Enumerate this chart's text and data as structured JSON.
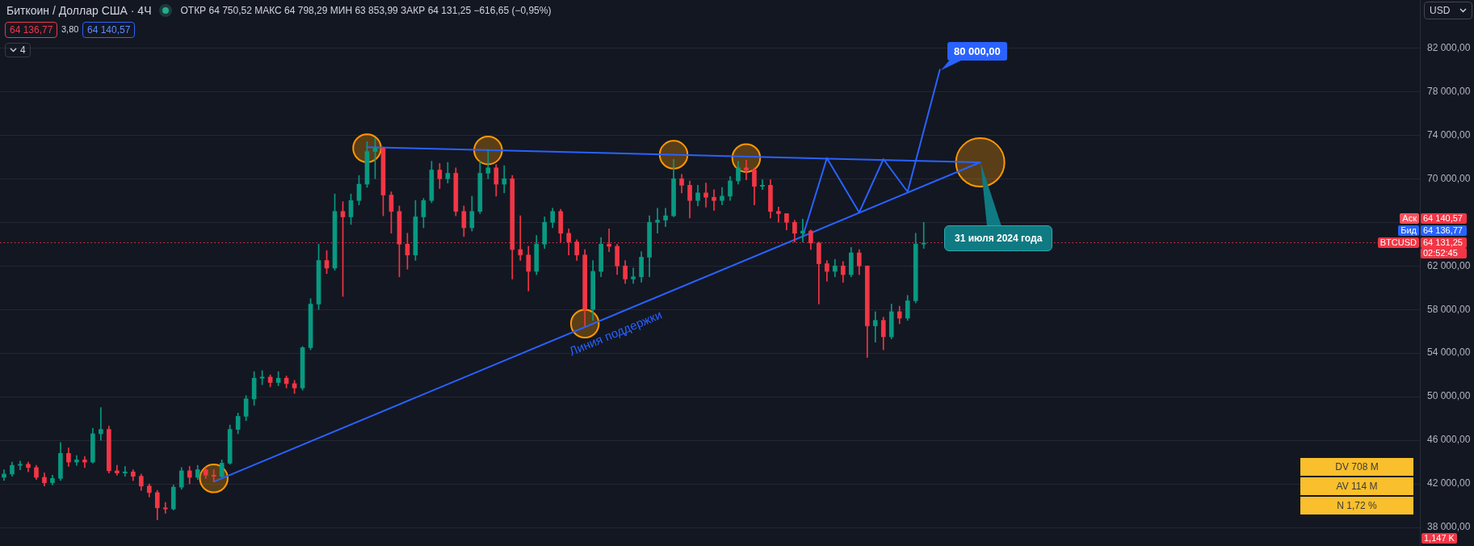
{
  "chart_data": {
    "type": "candlestick",
    "title": "Биткоин / Доллар США · 4Ч",
    "subtitle": "ОТКР 64 750,52 МАКС 64 798,29 МИН 63 853,99 ЗАКР 64 131,25 −616,65 (−0,95%)",
    "categories": [
      null,
      null,
      null,
      null,
      null,
      null,
      null,
      null,
      null,
      null,
      null,
      null,
      null,
      null,
      null,
      null,
      null,
      null,
      null,
      null,
      null,
      null,
      null,
      null,
      null,
      null,
      null,
      null,
      null,
      null,
      null,
      null,
      null,
      null,
      null,
      null,
      null,
      null,
      null,
      null,
      null,
      null,
      null,
      null,
      null,
      null,
      null,
      null,
      null,
      null,
      null,
      null,
      null,
      null,
      null,
      null,
      null,
      null,
      null,
      null,
      null,
      null,
      null,
      null,
      null,
      null,
      null,
      null,
      null,
      null,
      null,
      null,
      null,
      null,
      null,
      null,
      null,
      null,
      null,
      null,
      null,
      null,
      null,
      null,
      null,
      null,
      null,
      null,
      null,
      null,
      null,
      null,
      null,
      null,
      null,
      null,
      null,
      null,
      null,
      null,
      null,
      null,
      null,
      null,
      null,
      null,
      null,
      null,
      null,
      null,
      null,
      null,
      null,
      null,
      null,
      null,
      null,
      null,
      null,
      null,
      null,
      null,
      null,
      null,
      null,
      null,
      null,
      null,
      null,
      null,
      null,
      null,
      null,
      null,
      null,
      null,
      null,
      null,
      null,
      null,
      null,
      null,
      null,
      null,
      null,
      null,
      null,
      null,
      null,
      null,
      null,
      null,
      null,
      null,
      null,
      null,
      null,
      null,
      null,
      null,
      null,
      null,
      null,
      null,
      null,
      null,
      null,
      null,
      null,
      null,
      null,
      null,
      null,
      null,
      null,
      null
    ],
    "ohlc": [
      [
        42600,
        43300,
        42300,
        42900
      ],
      [
        42900,
        44000,
        42700,
        43700
      ],
      [
        43700,
        44100,
        43300,
        43800
      ],
      [
        43800,
        44000,
        43100,
        43500
      ],
      [
        43500,
        43700,
        42400,
        42600
      ],
      [
        42600,
        43000,
        41800,
        42100
      ],
      [
        42100,
        42800,
        41900,
        42500
      ],
      [
        42500,
        45800,
        42300,
        44800
      ],
      [
        44800,
        45300,
        43600,
        44000
      ],
      [
        44000,
        44600,
        43700,
        44200
      ],
      [
        44200,
        44500,
        43500,
        44000
      ],
      [
        44000,
        47100,
        43900,
        46600
      ],
      [
        46600,
        49000,
        46000,
        47000
      ],
      [
        47000,
        47300,
        43000,
        43200
      ],
      [
        43200,
        43700,
        42800,
        43000
      ],
      [
        43000,
        43600,
        42700,
        43100
      ],
      [
        43100,
        43300,
        42300,
        42700
      ],
      [
        42700,
        42900,
        41400,
        41800
      ],
      [
        41800,
        42000,
        40800,
        41200
      ],
      [
        41200,
        41400,
        38700,
        39800
      ],
      [
        39800,
        40300,
        39300,
        39700
      ],
      [
        39700,
        41900,
        39600,
        41700
      ],
      [
        41700,
        43500,
        41500,
        43200
      ],
      [
        43200,
        43600,
        42000,
        42600
      ],
      [
        42600,
        43700,
        42400,
        43300
      ],
      [
        43300,
        43500,
        42500,
        42800
      ],
      [
        42800,
        43300,
        42200,
        42700
      ],
      [
        42700,
        44200,
        42600,
        43900
      ],
      [
        43900,
        47400,
        43800,
        47000
      ],
      [
        47000,
        48500,
        46600,
        48200
      ],
      [
        48200,
        50100,
        47800,
        49800
      ],
      [
        49800,
        52300,
        49200,
        51700
      ],
      [
        51700,
        52400,
        51100,
        51800
      ],
      [
        51800,
        52000,
        50900,
        51300
      ],
      [
        51300,
        52300,
        51000,
        51700
      ],
      [
        51700,
        51900,
        50800,
        51200
      ],
      [
        51200,
        51500,
        50300,
        50800
      ],
      [
        50800,
        54600,
        50600,
        54500
      ],
      [
        54500,
        59000,
        54300,
        58500
      ],
      [
        58500,
        64000,
        58000,
        62500
      ],
      [
        62500,
        63400,
        61300,
        61800
      ],
      [
        61800,
        68600,
        61600,
        67000
      ],
      [
        67000,
        67900,
        59200,
        66500
      ],
      [
        66500,
        68600,
        65800,
        68000
      ],
      [
        68000,
        70300,
        67600,
        69500
      ],
      [
        69500,
        73400,
        69200,
        72500
      ],
      [
        72500,
        73700,
        70000,
        72800
      ],
      [
        72800,
        72900,
        66600,
        68500
      ],
      [
        68500,
        68800,
        65000,
        67000
      ],
      [
        67000,
        67500,
        61000,
        64000
      ],
      [
        64000,
        65000,
        61700,
        63000
      ],
      [
        63000,
        68000,
        62500,
        66500
      ],
      [
        66500,
        68200,
        65500,
        68000
      ],
      [
        68000,
        71600,
        67800,
        70800
      ],
      [
        70800,
        71400,
        69100,
        70000
      ],
      [
        70000,
        71500,
        69600,
        70500
      ],
      [
        70500,
        71000,
        66600,
        67000
      ],
      [
        67000,
        67500,
        64700,
        65500
      ],
      [
        65500,
        68400,
        65200,
        67000
      ],
      [
        67000,
        71600,
        66800,
        70500
      ],
      [
        70500,
        72700,
        70000,
        71000
      ],
      [
        71000,
        71300,
        68400,
        69500
      ],
      [
        69500,
        71200,
        68700,
        70000
      ],
      [
        70000,
        70300,
        60800,
        63500
      ],
      [
        63500,
        66600,
        62500,
        63000
      ],
      [
        63000,
        63800,
        59700,
        61500
      ],
      [
        61500,
        64800,
        61200,
        64000
      ],
      [
        64000,
        66500,
        63600,
        66000
      ],
      [
        66000,
        67300,
        65500,
        67000
      ],
      [
        67000,
        67200,
        64200,
        65000
      ],
      [
        65000,
        65400,
        63000,
        64200
      ],
      [
        64200,
        64400,
        62500,
        63000
      ],
      [
        63000,
        63500,
        56500,
        58000
      ],
      [
        58000,
        62500,
        57000,
        61500
      ],
      [
        61500,
        64600,
        61000,
        64000
      ],
      [
        64000,
        65400,
        63300,
        63800
      ],
      [
        63800,
        64000,
        61200,
        62000
      ],
      [
        62000,
        62500,
        60400,
        60800
      ],
      [
        60800,
        61800,
        60400,
        61000
      ],
      [
        61000,
        63300,
        60500,
        62800
      ],
      [
        62800,
        66600,
        61000,
        66000
      ],
      [
        66000,
        67300,
        65000,
        66200
      ],
      [
        66200,
        67300,
        65600,
        66600
      ],
      [
        66600,
        71800,
        66500,
        70000
      ],
      [
        70000,
        70400,
        68700,
        69400
      ],
      [
        69400,
        69800,
        66400,
        68000
      ],
      [
        68000,
        69400,
        67500,
        68700
      ],
      [
        68700,
        69600,
        67400,
        68300
      ],
      [
        68300,
        69000,
        67100,
        68000
      ],
      [
        68000,
        69200,
        67600,
        68400
      ],
      [
        68400,
        70200,
        68000,
        69800
      ],
      [
        69800,
        71600,
        69500,
        71000
      ],
      [
        71000,
        71700,
        69900,
        70800
      ],
      [
        70800,
        71000,
        67600,
        69300
      ],
      [
        69300,
        69900,
        69000,
        69400
      ],
      [
        69400,
        69900,
        66400,
        67000
      ],
      [
        67000,
        67400,
        66000,
        66800
      ],
      [
        66800,
        66800,
        65300,
        66000
      ],
      [
        66000,
        66200,
        64200,
        65000
      ],
      [
        65000,
        66300,
        64200,
        65200
      ],
      [
        65200,
        65300,
        63500,
        64100
      ],
      [
        64100,
        64200,
        58500,
        62200
      ],
      [
        62200,
        62500,
        60600,
        61500
      ],
      [
        61500,
        62600,
        61000,
        62000
      ],
      [
        62000,
        62400,
        60500,
        61200
      ],
      [
        61200,
        63700,
        61000,
        63200
      ],
      [
        63200,
        63500,
        61200,
        62000
      ],
      [
        62000,
        62000,
        53600,
        56500
      ],
      [
        56500,
        57800,
        55000,
        57000
      ],
      [
        57000,
        57300,
        54300,
        55500
      ],
      [
        55500,
        58500,
        55300,
        57800
      ],
      [
        57800,
        58300,
        56700,
        57200
      ],
      [
        57200,
        59300,
        57000,
        58800
      ],
      [
        58800,
        65000,
        58600,
        64000
      ],
      [
        64000,
        66000,
        63600,
        64100
      ],
      null,
      null,
      null,
      null,
      null,
      null,
      null,
      null,
      null,
      null,
      null,
      null,
      null,
      null,
      null,
      null,
      null,
      null,
      null,
      null,
      null,
      null,
      null,
      null,
      null,
      null,
      null,
      null,
      null,
      null,
      null,
      null,
      null,
      null,
      null,
      null,
      null,
      null,
      null,
      null,
      null,
      null,
      null,
      null,
      null,
      null,
      null,
      null,
      null,
      null,
      null,
      null,
      null,
      null,
      null,
      null,
      null,
      null,
      null,
      null,
      null
    ],
    "colors": [
      "#089981",
      "#089981",
      "#089981",
      "#f23645",
      "#f23645",
      "#f23645",
      "#089981",
      "#089981",
      "#f23645",
      "#089981",
      "#f23645",
      "#089981",
      "#089981",
      "#f23645",
      "#f23645",
      "#089981",
      "#f23645",
      "#f23645",
      "#f23645",
      "#f23645",
      "#f23645",
      "#089981",
      "#089981",
      "#f23645",
      "#089981",
      "#f23645",
      "#f23645",
      "#089981",
      "#089981",
      "#089981",
      "#089981",
      "#089981",
      "#089981",
      "#f23645",
      "#089981",
      "#f23645",
      "#f23645",
      "#089981",
      "#089981",
      "#089981",
      "#f23645",
      "#089981",
      "#f23645",
      "#089981",
      "#089981",
      "#089981",
      "#089981",
      "#f23645",
      "#f23645",
      "#f23645",
      "#f23645",
      "#089981",
      "#089981",
      "#089981",
      "#f23645",
      "#089981",
      "#f23645",
      "#f23645",
      "#089981",
      "#089981",
      "#089981",
      "#f23645",
      "#089981",
      "#f23645",
      "#f23645",
      "#f23645",
      "#089981",
      "#089981",
      "#089981",
      "#f23645",
      "#f23645",
      "#f23645",
      "#f23645",
      "#089981",
      "#089981",
      "#f23645",
      "#f23645",
      "#f23645",
      "#089981",
      "#089981",
      "#089981",
      "#089981",
      "#089981",
      "#089981",
      "#f23645",
      "#f23645",
      "#089981",
      "#f23645",
      "#f23645",
      "#089981",
      "#089981",
      "#089981",
      "#f23645",
      "#f23645",
      "#089981",
      "#f23645",
      "#f23645",
      "#f23645",
      "#f23645",
      "#089981",
      "#f23645",
      "#f23645",
      "#f23645",
      "#089981",
      "#f23645",
      "#089981",
      "#f23645",
      "#f23645",
      "#089981",
      "#f23645",
      "#089981",
      "#f23645",
      "#089981",
      "#089981",
      "#089981",
      null,
      null,
      null,
      null,
      null,
      null,
      null,
      null,
      null,
      null,
      null,
      null,
      null,
      null,
      null,
      null,
      null,
      null,
      null,
      null,
      null,
      null,
      null,
      null,
      null,
      null,
      null,
      null,
      null,
      null,
      null,
      null,
      null,
      null,
      null,
      null,
      null,
      null,
      null,
      null,
      null,
      null,
      null,
      null,
      null,
      null,
      null,
      null,
      null,
      null,
      null,
      null,
      null,
      null,
      null,
      null,
      null,
      null,
      null,
      null,
      null
    ],
    "series": [
      {
        "type": "line",
        "color": "#2962ff",
        "values": [
          null,
          null,
          null,
          null,
          null,
          null,
          null,
          null,
          null,
          null,
          null,
          null,
          null,
          null,
          null,
          null,
          null,
          null,
          null,
          null,
          null,
          null,
          null,
          null,
          null,
          null,
          42200,
          null,
          null,
          null,
          null,
          null,
          null,
          null,
          null,
          null,
          null,
          null,
          null,
          null,
          null,
          null,
          null,
          null,
          null,
          null,
          null,
          null,
          null,
          null,
          null,
          null,
          null,
          null,
          null,
          null,
          null,
          null,
          null,
          null,
          null,
          null,
          null,
          null,
          null,
          null,
          null,
          null,
          null,
          null,
          null,
          null,
          null,
          null,
          null,
          null,
          null,
          null,
          null,
          null,
          null,
          null,
          null,
          null,
          null,
          null,
          null,
          null,
          null,
          null,
          null,
          null,
          null,
          null,
          null,
          null,
          null,
          null,
          null,
          null,
          null,
          null,
          null,
          null,
          null,
          null,
          null,
          null,
          null,
          null,
          null,
          null,
          null,
          null,
          null,
          null,
          null,
          null,
          null,
          null,
          null,
          71500,
          null,
          null,
          null,
          null,
          null,
          null,
          null,
          null,
          null,
          null,
          null,
          null,
          null,
          null,
          null,
          null,
          null,
          null,
          null,
          null,
          null,
          null,
          null,
          null,
          null,
          null,
          null,
          null,
          null,
          null,
          null,
          null,
          null,
          null,
          null,
          null,
          null,
          null,
          null,
          null,
          null,
          null,
          null,
          null,
          null,
          null,
          null,
          null,
          null,
          null,
          null,
          null,
          null,
          null
        ]
      },
      {
        "type": "line",
        "color": "#2962ff",
        "values": [
          null,
          null,
          null,
          null,
          null,
          null,
          null,
          null,
          null,
          null,
          null,
          null,
          null,
          null,
          null,
          null,
          null,
          null,
          null,
          null,
          null,
          null,
          null,
          null,
          null,
          null,
          null,
          null,
          null,
          null,
          null,
          null,
          null,
          null,
          null,
          null,
          null,
          null,
          null,
          null,
          null,
          null,
          null,
          null,
          null,
          72900,
          null,
          null,
          null,
          null,
          null,
          null,
          null,
          null,
          null,
          null,
          null,
          null,
          null,
          null,
          null,
          null,
          null,
          null,
          null,
          null,
          null,
          null,
          null,
          null,
          null,
          null,
          null,
          null,
          null,
          null,
          null,
          null,
          null,
          null,
          null,
          null,
          null,
          null,
          null,
          null,
          null,
          null,
          null,
          null,
          null,
          null,
          null,
          null,
          null,
          null,
          null,
          null,
          null,
          null,
          null,
          null,
          null,
          null,
          null,
          null,
          null,
          null,
          null,
          null,
          null,
          null,
          null,
          null,
          null,
          null,
          null,
          null,
          null,
          null,
          null,
          71500,
          null,
          null,
          null,
          null,
          null,
          null,
          null,
          null,
          null,
          null,
          null,
          null,
          null,
          null,
          null,
          null,
          null,
          null,
          null,
          null,
          null,
          null,
          null,
          null,
          null,
          null,
          null,
          null,
          null,
          null,
          null,
          null,
          null,
          null,
          null,
          null,
          null,
          null,
          null,
          null,
          null,
          null,
          null,
          null,
          null,
          null,
          null,
          null,
          null,
          null,
          null,
          null,
          null,
          null
        ]
      },
      {
        "type": "line",
        "color": "#2962ff",
        "values": [
          null,
          null,
          null,
          null,
          null,
          null,
          null,
          null,
          null,
          null,
          null,
          null,
          null,
          null,
          null,
          null,
          null,
          null,
          null,
          null,
          null,
          null,
          null,
          null,
          null,
          null,
          null,
          null,
          null,
          null,
          null,
          null,
          null,
          null,
          null,
          null,
          null,
          null,
          null,
          null,
          null,
          null,
          null,
          null,
          null,
          null,
          null,
          null,
          null,
          null,
          null,
          null,
          null,
          null,
          null,
          null,
          null,
          null,
          null,
          null,
          null,
          null,
          null,
          null,
          null,
          null,
          null,
          null,
          null,
          null,
          null,
          null,
          null,
          null,
          null,
          null,
          null,
          null,
          null,
          null,
          null,
          null,
          null,
          null,
          null,
          null,
          null,
          null,
          null,
          null,
          null,
          null,
          null,
          null,
          null,
          null,
          null,
          null,
          null,
          64700,
          null,
          null,
          71900,
          null,
          null,
          null,
          66900,
          null,
          null,
          71800,
          null,
          null,
          68800,
          null,
          null,
          null,
          80000,
          null,
          null,
          null,
          null,
          null,
          null,
          null,
          null,
          null,
          null,
          null,
          null,
          null,
          null,
          null,
          null,
          null,
          null,
          null,
          null,
          null,
          null,
          null,
          null,
          null,
          null,
          null,
          null,
          null,
          null,
          null,
          null,
          null,
          null,
          null,
          null,
          null,
          null,
          null,
          null,
          null,
          null,
          null,
          null,
          null,
          null,
          null,
          null,
          null,
          null,
          null,
          null,
          null,
          null,
          null,
          null,
          null,
          null,
          null
        ]
      },
      {
        "type": "bubble",
        "color": "#ff9800",
        "values": [
          null,
          null,
          null,
          null,
          null,
          null,
          null,
          null,
          null,
          null,
          null,
          null,
          null,
          null,
          null,
          null,
          null,
          null,
          null,
          null,
          null,
          null,
          null,
          null,
          null,
          null,
          42500,
          null,
          null,
          null,
          null,
          null,
          null,
          null,
          null,
          null,
          null,
          null,
          null,
          null,
          null,
          null,
          null,
          null,
          null,
          72800,
          null,
          null,
          null,
          null,
          null,
          null,
          null,
          null,
          null,
          null,
          null,
          null,
          null,
          null,
          72600,
          null,
          null,
          null,
          null,
          null,
          null,
          null,
          null,
          null,
          null,
          null,
          56700,
          null,
          null,
          null,
          null,
          null,
          null,
          null,
          null,
          null,
          null,
          72200,
          null,
          null,
          null,
          null,
          null,
          null,
          null,
          null,
          71900,
          null,
          null,
          null,
          null,
          null,
          null,
          null,
          null,
          null,
          null,
          null,
          null,
          null,
          null,
          null,
          null,
          null,
          null,
          null,
          null,
          null,
          null,
          null,
          null,
          null,
          null,
          null,
          null,
          71500,
          null,
          null,
          null,
          null,
          null,
          null,
          null,
          null,
          null,
          null,
          null,
          null,
          null,
          null,
          null,
          null,
          null,
          null,
          null,
          null,
          null,
          null,
          null,
          null,
          null,
          null,
          null,
          null,
          null,
          null,
          null,
          null,
          null,
          null,
          null,
          null,
          null,
          null,
          null,
          null,
          null,
          null,
          null,
          null,
          null,
          null,
          null,
          null,
          null,
          null,
          null,
          null,
          null,
          null
        ],
        "sizes": [
          null,
          null,
          null,
          null,
          null,
          null,
          null,
          null,
          null,
          null,
          null,
          null,
          null,
          null,
          null,
          null,
          null,
          null,
          null,
          null,
          null,
          null,
          null,
          null,
          null,
          null,
          0.33,
          null,
          null,
          null,
          null,
          null,
          null,
          null,
          null,
          null,
          null,
          null,
          null,
          null,
          null,
          null,
          null,
          null,
          null,
          0.33,
          null,
          null,
          null,
          null,
          null,
          null,
          null,
          null,
          null,
          null,
          null,
          null,
          null,
          null,
          0.33,
          null,
          null,
          null,
          null,
          null,
          null,
          null,
          null,
          null,
          null,
          null,
          0.33,
          null,
          null,
          null,
          null,
          null,
          null,
          null,
          null,
          null,
          null,
          0.33,
          null,
          null,
          null,
          null,
          null,
          null,
          null,
          null,
          0.33,
          null,
          null,
          null,
          null,
          null,
          null,
          null,
          null,
          null,
          null,
          null,
          null,
          null,
          null,
          null,
          null,
          null,
          null,
          null,
          null,
          null,
          null,
          null,
          null,
          null,
          null,
          null,
          null,
          1,
          null,
          null,
          null,
          null,
          null,
          null,
          null,
          null,
          null,
          null,
          null,
          null,
          null,
          null,
          null,
          null,
          null,
          null,
          null,
          null,
          null,
          null,
          null,
          null,
          null,
          null,
          null,
          null,
          null,
          null,
          null,
          null,
          null,
          null,
          null,
          null,
          null,
          null,
          null,
          null,
          null,
          null,
          null,
          null,
          null,
          null,
          null,
          null,
          null,
          null,
          null,
          null,
          null,
          null
        ]
      }
    ],
    "ylim": [
      36300,
      86400
    ],
    "yticks": [
      {
        "value": 38000,
        "label": "38 000,00"
      },
      {
        "value": 42000,
        "label": "42 000,00"
      },
      {
        "value": 46000,
        "label": "46 000,00"
      },
      {
        "value": 50000,
        "label": "50 000,00"
      },
      {
        "value": 54000,
        "label": "54 000,00"
      },
      {
        "value": 58000,
        "label": "58 000,00"
      },
      {
        "value": 62000,
        "label": "62 000,00"
      },
      {
        "value": 66000,
        "label": null
      },
      {
        "value": 70000,
        "label": "70 000,00"
      },
      {
        "value": 74000,
        "label": "74 000,00"
      },
      {
        "value": 78000,
        "label": "78 000,00"
      },
      {
        "value": 82000,
        "label": "82 000,00"
      }
    ],
    "grid": "y",
    "tick_labels": "y",
    "ref_lines": [
      {
        "axis": "y",
        "value": 64131.25,
        "color": "#f23645",
        "line_style": "dotted"
      }
    ],
    "annotations": [
      "64 136,77",
      "3,80",
      "64 140,57",
      "4",
      "USD",
      "Аск",
      "64 140,57",
      "Бид",
      "64 136,77",
      "BTCUSD",
      "64 131,25",
      "02:52:45",
      "80 000,00",
      "31 июля 2024 года",
      "Линия поддержки",
      "DV 708 M",
      "AV 114 M",
      "N 1,72 %",
      "1,147 K"
    ]
  }
}
